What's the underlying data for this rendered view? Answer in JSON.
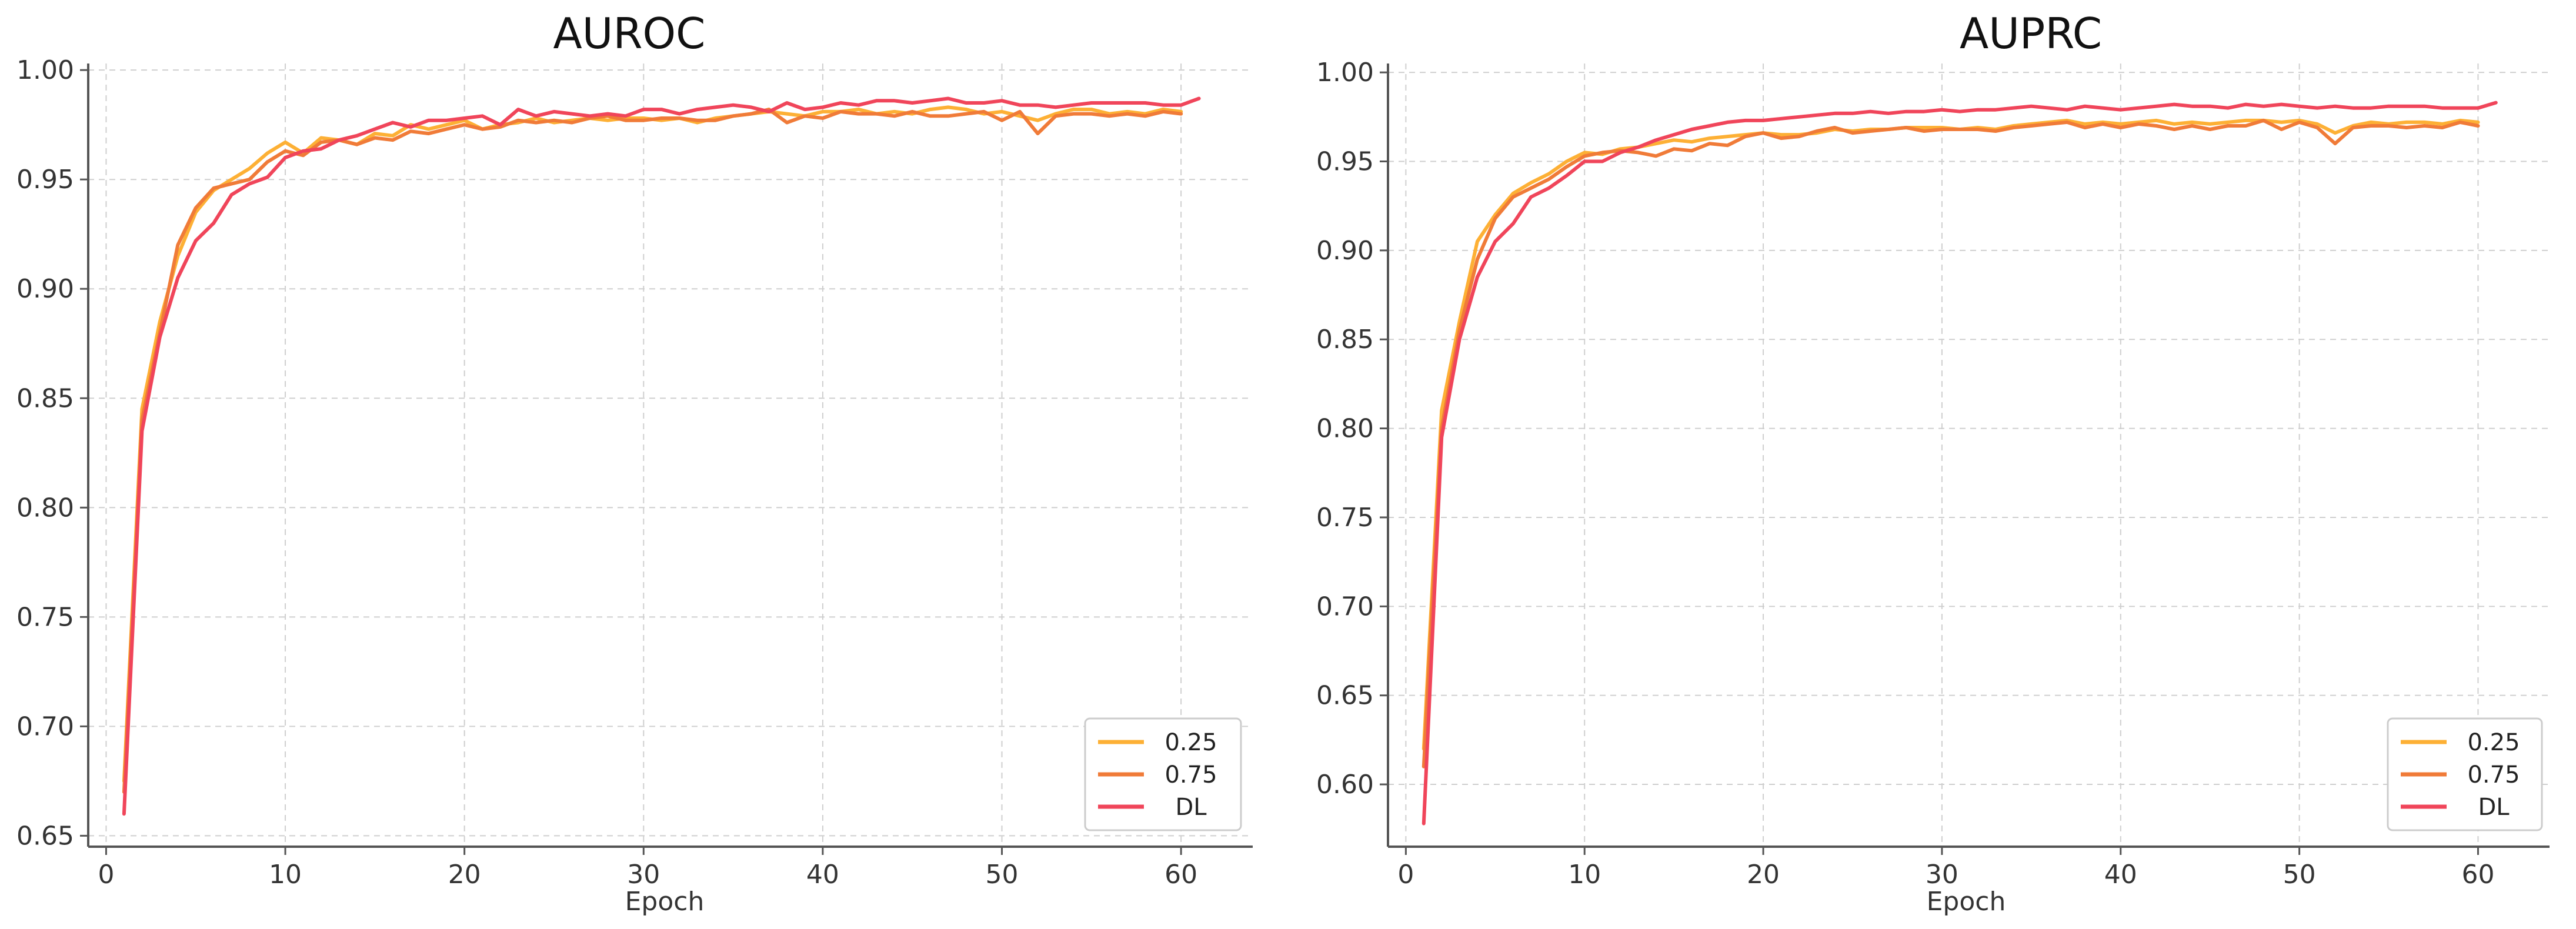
{
  "colors": {
    "0.25": "#FDB035",
    "0.75": "#F07B38",
    "DL": "#F0455A"
  },
  "chart_data": [
    {
      "type": "line",
      "title": "AUROC",
      "xlabel": "Epoch",
      "ylabel": "",
      "xlim": [
        -1,
        64
      ],
      "ylim": [
        0.645,
        1.003
      ],
      "xticks": [
        0,
        10,
        20,
        30,
        40,
        50,
        60
      ],
      "yticks": [
        0.65,
        0.7,
        0.75,
        0.8,
        0.85,
        0.9,
        0.95,
        1.0
      ],
      "ytick_labels": [
        "0.65",
        "0.70",
        "0.75",
        "0.80",
        "0.85",
        "0.90",
        "0.95",
        "1.00"
      ],
      "grid": true,
      "legend_position": "bottom-right",
      "series": [
        {
          "name": "0.25",
          "color": "#FDB035",
          "x": [
            1,
            2,
            3,
            4,
            5,
            6,
            7,
            8,
            9,
            10,
            11,
            12,
            13,
            14,
            15,
            16,
            17,
            18,
            19,
            20,
            21,
            22,
            23,
            24,
            25,
            26,
            27,
            28,
            29,
            30,
            31,
            32,
            33,
            34,
            35,
            36,
            37,
            38,
            39,
            40,
            41,
            42,
            43,
            44,
            45,
            46,
            47,
            48,
            49,
            50,
            51,
            52,
            53,
            54,
            55,
            56,
            57,
            58,
            59,
            60
          ],
          "y": [
            0.675,
            0.845,
            0.885,
            0.915,
            0.935,
            0.945,
            0.95,
            0.955,
            0.962,
            0.967,
            0.962,
            0.969,
            0.968,
            0.966,
            0.971,
            0.97,
            0.975,
            0.973,
            0.975,
            0.977,
            0.973,
            0.975,
            0.976,
            0.978,
            0.976,
            0.977,
            0.978,
            0.977,
            0.978,
            0.978,
            0.977,
            0.978,
            0.976,
            0.978,
            0.979,
            0.98,
            0.981,
            0.98,
            0.979,
            0.981,
            0.981,
            0.982,
            0.98,
            0.981,
            0.98,
            0.982,
            0.983,
            0.982,
            0.98,
            0.981,
            0.979,
            0.977,
            0.98,
            0.982,
            0.982,
            0.98,
            0.981,
            0.98,
            0.982,
            0.981
          ]
        },
        {
          "name": "0.75",
          "color": "#F07B38",
          "x": [
            1,
            2,
            3,
            4,
            5,
            6,
            7,
            8,
            9,
            10,
            11,
            12,
            13,
            14,
            15,
            16,
            17,
            18,
            19,
            20,
            21,
            22,
            23,
            24,
            25,
            26,
            27,
            28,
            29,
            30,
            31,
            32,
            33,
            34,
            35,
            36,
            37,
            38,
            39,
            40,
            41,
            42,
            43,
            44,
            45,
            46,
            47,
            48,
            49,
            50,
            51,
            52,
            53,
            54,
            55,
            56,
            57,
            58,
            59,
            60
          ],
          "y": [
            0.67,
            0.84,
            0.88,
            0.92,
            0.937,
            0.946,
            0.948,
            0.95,
            0.958,
            0.963,
            0.961,
            0.967,
            0.968,
            0.966,
            0.969,
            0.968,
            0.972,
            0.971,
            0.973,
            0.975,
            0.973,
            0.974,
            0.977,
            0.976,
            0.977,
            0.976,
            0.978,
            0.979,
            0.977,
            0.977,
            0.978,
            0.978,
            0.977,
            0.977,
            0.979,
            0.98,
            0.982,
            0.976,
            0.979,
            0.978,
            0.981,
            0.98,
            0.98,
            0.979,
            0.981,
            0.979,
            0.979,
            0.98,
            0.981,
            0.977,
            0.981,
            0.971,
            0.979,
            0.98,
            0.98,
            0.979,
            0.98,
            0.979,
            0.981,
            0.98
          ]
        },
        {
          "name": "DL",
          "color": "#F0455A",
          "x": [
            1,
            2,
            3,
            4,
            5,
            6,
            7,
            8,
            9,
            10,
            11,
            12,
            13,
            14,
            15,
            16,
            17,
            18,
            19,
            20,
            21,
            22,
            23,
            24,
            25,
            26,
            27,
            28,
            29,
            30,
            31,
            32,
            33,
            34,
            35,
            36,
            37,
            38,
            39,
            40,
            41,
            42,
            43,
            44,
            45,
            46,
            47,
            48,
            49,
            50,
            51,
            52,
            53,
            54,
            55,
            56,
            57,
            58,
            59,
            60,
            61
          ],
          "y": [
            0.66,
            0.835,
            0.878,
            0.905,
            0.922,
            0.93,
            0.943,
            0.948,
            0.951,
            0.96,
            0.963,
            0.964,
            0.968,
            0.97,
            0.973,
            0.976,
            0.974,
            0.977,
            0.977,
            0.978,
            0.979,
            0.975,
            0.982,
            0.979,
            0.981,
            0.98,
            0.979,
            0.98,
            0.979,
            0.982,
            0.982,
            0.98,
            0.982,
            0.983,
            0.984,
            0.983,
            0.981,
            0.985,
            0.982,
            0.983,
            0.985,
            0.984,
            0.986,
            0.986,
            0.985,
            0.986,
            0.987,
            0.985,
            0.985,
            0.986,
            0.984,
            0.984,
            0.983,
            0.984,
            0.985,
            0.985,
            0.985,
            0.985,
            0.984,
            0.984,
            0.987
          ]
        }
      ]
    },
    {
      "type": "line",
      "title": "AUPRC",
      "xlabel": "Epoch",
      "ylabel": "",
      "xlim": [
        -1,
        64
      ],
      "ylim": [
        0.565,
        1.005
      ],
      "xticks": [
        0,
        10,
        20,
        30,
        40,
        50,
        60
      ],
      "yticks": [
        0.6,
        0.65,
        0.7,
        0.75,
        0.8,
        0.85,
        0.9,
        0.95,
        1.0
      ],
      "ytick_labels": [
        "0.60",
        "0.65",
        "0.70",
        "0.75",
        "0.80",
        "0.85",
        "0.90",
        "0.95",
        "1.00"
      ],
      "grid": true,
      "legend_position": "bottom-right",
      "series": [
        {
          "name": "0.25",
          "color": "#FDB035",
          "x": [
            1,
            2,
            3,
            4,
            5,
            6,
            7,
            8,
            9,
            10,
            11,
            12,
            13,
            14,
            15,
            16,
            17,
            18,
            19,
            20,
            21,
            22,
            23,
            24,
            25,
            26,
            27,
            28,
            29,
            30,
            31,
            32,
            33,
            34,
            35,
            36,
            37,
            38,
            39,
            40,
            41,
            42,
            43,
            44,
            45,
            46,
            47,
            48,
            49,
            50,
            51,
            52,
            53,
            54,
            55,
            56,
            57,
            58,
            59,
            60
          ],
          "y": [
            0.62,
            0.81,
            0.86,
            0.905,
            0.92,
            0.932,
            0.938,
            0.943,
            0.95,
            0.955,
            0.954,
            0.957,
            0.958,
            0.96,
            0.962,
            0.961,
            0.963,
            0.964,
            0.965,
            0.966,
            0.965,
            0.965,
            0.966,
            0.968,
            0.967,
            0.968,
            0.968,
            0.969,
            0.969,
            0.969,
            0.968,
            0.969,
            0.968,
            0.97,
            0.971,
            0.972,
            0.973,
            0.971,
            0.972,
            0.971,
            0.972,
            0.973,
            0.971,
            0.972,
            0.971,
            0.972,
            0.973,
            0.973,
            0.972,
            0.973,
            0.971,
            0.966,
            0.97,
            0.972,
            0.971,
            0.972,
            0.972,
            0.971,
            0.973,
            0.972
          ]
        },
        {
          "name": "0.75",
          "color": "#F07B38",
          "x": [
            1,
            2,
            3,
            4,
            5,
            6,
            7,
            8,
            9,
            10,
            11,
            12,
            13,
            14,
            15,
            16,
            17,
            18,
            19,
            20,
            21,
            22,
            23,
            24,
            25,
            26,
            27,
            28,
            29,
            30,
            31,
            32,
            33,
            34,
            35,
            36,
            37,
            38,
            39,
            40,
            41,
            42,
            43,
            44,
            45,
            46,
            47,
            48,
            49,
            50,
            51,
            52,
            53,
            54,
            55,
            56,
            57,
            58,
            59,
            60
          ],
          "y": [
            0.61,
            0.8,
            0.855,
            0.895,
            0.918,
            0.93,
            0.935,
            0.94,
            0.947,
            0.953,
            0.955,
            0.956,
            0.955,
            0.953,
            0.957,
            0.956,
            0.96,
            0.959,
            0.964,
            0.966,
            0.963,
            0.964,
            0.967,
            0.969,
            0.966,
            0.967,
            0.968,
            0.969,
            0.967,
            0.968,
            0.968,
            0.968,
            0.967,
            0.969,
            0.97,
            0.971,
            0.972,
            0.969,
            0.971,
            0.969,
            0.971,
            0.97,
            0.968,
            0.97,
            0.968,
            0.97,
            0.97,
            0.973,
            0.968,
            0.972,
            0.969,
            0.96,
            0.969,
            0.97,
            0.97,
            0.969,
            0.97,
            0.969,
            0.972,
            0.97
          ]
        },
        {
          "name": "DL",
          "color": "#F0455A",
          "x": [
            1,
            2,
            3,
            4,
            5,
            6,
            7,
            8,
            9,
            10,
            11,
            12,
            13,
            14,
            15,
            16,
            17,
            18,
            19,
            20,
            21,
            22,
            23,
            24,
            25,
            26,
            27,
            28,
            29,
            30,
            31,
            32,
            33,
            34,
            35,
            36,
            37,
            38,
            39,
            40,
            41,
            42,
            43,
            44,
            45,
            46,
            47,
            48,
            49,
            50,
            51,
            52,
            53,
            54,
            55,
            56,
            57,
            58,
            59,
            60,
            61
          ],
          "y": [
            0.578,
            0.795,
            0.85,
            0.885,
            0.905,
            0.915,
            0.93,
            0.935,
            0.942,
            0.95,
            0.95,
            0.955,
            0.958,
            0.962,
            0.965,
            0.968,
            0.97,
            0.972,
            0.973,
            0.973,
            0.974,
            0.975,
            0.976,
            0.977,
            0.977,
            0.978,
            0.977,
            0.978,
            0.978,
            0.979,
            0.978,
            0.979,
            0.979,
            0.98,
            0.981,
            0.98,
            0.979,
            0.981,
            0.98,
            0.979,
            0.98,
            0.981,
            0.982,
            0.981,
            0.981,
            0.98,
            0.982,
            0.981,
            0.982,
            0.981,
            0.98,
            0.981,
            0.98,
            0.98,
            0.981,
            0.981,
            0.981,
            0.98,
            0.98,
            0.98,
            0.983
          ]
        }
      ]
    }
  ]
}
